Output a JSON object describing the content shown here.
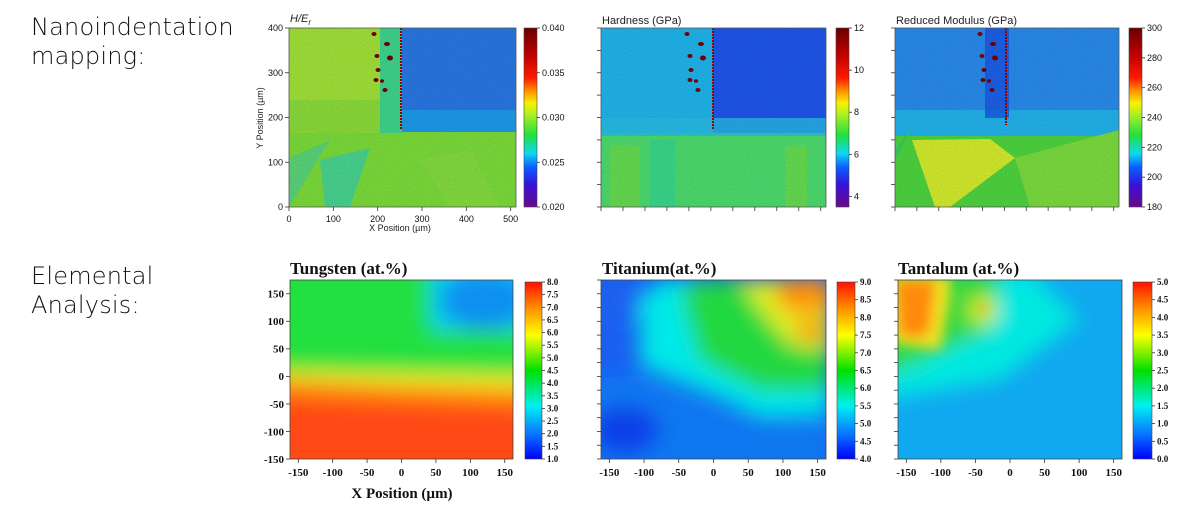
{
  "labels": {
    "nano_line1": "Nanoindentation",
    "nano_line2": "mapping:",
    "elem_line1": "Elemental",
    "elem_line2": "Analysis:"
  },
  "chart_data": [
    {
      "id": "her",
      "type": "heatmap",
      "title": "H/E_r",
      "title_main": "H/E",
      "title_sub": "r",
      "xlabel": "X Position (µm)",
      "ylabel": "Y Position (µm)",
      "xlim": [
        0,
        512
      ],
      "ylim": [
        0,
        400
      ],
      "xticks": [
        0,
        100,
        200,
        300,
        400,
        500
      ],
      "yticks": [
        0,
        100,
        200,
        300,
        400
      ],
      "colorbar": {
        "min": 0.02,
        "max": 0.04,
        "ticks": [
          "0.020",
          "0.025",
          "0.030",
          "0.035",
          "0.040"
        ],
        "colormap": "rainbow-purple-to-maroon"
      },
      "regions": [
        {
          "name": "upper-left grain",
          "level": 0.028
        },
        {
          "name": "upper-right grain",
          "level": 0.023
        },
        {
          "name": "lower grains",
          "level": 0.0265
        }
      ],
      "notes": "Interface near x≈255 µm with high-value indents; horizontal grain boundary near y≈160 µm"
    },
    {
      "id": "hardness",
      "type": "heatmap",
      "title": "Hardness (GPa)",
      "xlim": [
        0,
        512
      ],
      "ylim": [
        0,
        400
      ],
      "colorbar": {
        "min": 3.5,
        "max": 12,
        "ticks": [
          "4",
          "6",
          "8",
          "10",
          "12"
        ],
        "colormap": "rainbow-purple-to-maroon"
      },
      "regions": [
        {
          "name": "upper-left grain",
          "level": 5.8
        },
        {
          "name": "upper-right grain",
          "level": 4.9
        },
        {
          "name": "lower grains",
          "level": 6.2
        }
      ]
    },
    {
      "id": "modulus",
      "type": "heatmap",
      "title": "Reduced Modulus (GPa)",
      "xlim": [
        0,
        512
      ],
      "ylim": [
        0,
        400
      ],
      "colorbar": {
        "min": 180,
        "max": 300,
        "ticks": [
          "180",
          "200",
          "220",
          "240",
          "260",
          "280",
          "300"
        ],
        "colormap": "rainbow-purple-to-maroon"
      },
      "regions": [
        {
          "name": "upper grains",
          "level": 207
        },
        {
          "name": "lower-left triangular grain",
          "level": 236
        },
        {
          "name": "lower grains",
          "level": 226
        }
      ]
    },
    {
      "id": "tungsten",
      "type": "heatmap",
      "title": "Tungsten (at.%)",
      "xlabel": "X Position (µm)",
      "xlim": [
        -162,
        162
      ],
      "ylim": [
        -150,
        175
      ],
      "xticks": [
        -150,
        -100,
        -50,
        0,
        50,
        100,
        150
      ],
      "yticks": [
        -150,
        -100,
        -50,
        0,
        50,
        100,
        150
      ],
      "colorbar": {
        "min": 1.0,
        "max": 8.0,
        "ticks": [
          "1.0",
          "1.5",
          "2.0",
          "2.5",
          "3.0",
          "3.5",
          "4.0",
          "4.5",
          "5.0",
          "5.5",
          "6.0",
          "6.5",
          "7.0",
          "7.5",
          "8.0"
        ],
        "colormap": "jet"
      },
      "field": {
        "top-left": 4.3,
        "top-right": 2.0,
        "middle-left": 4.6,
        "middle-right": 4.0,
        "zero-line": 6.0,
        "bottom": 7.5
      }
    },
    {
      "id": "titanium",
      "type": "heatmap",
      "title": "Titanium(at.%)",
      "xlim": [
        -162,
        162
      ],
      "ylim": [
        -150,
        175
      ],
      "xticks": [
        -150,
        -100,
        -50,
        0,
        50,
        100,
        150
      ],
      "colorbar": {
        "min": 4.0,
        "max": 9.0,
        "ticks": [
          "4.0",
          "4.5",
          "5.0",
          "5.5",
          "6.0",
          "6.5",
          "7.0",
          "7.5",
          "8.0",
          "8.5",
          "9.0"
        ],
        "colormap": "jet"
      },
      "field": {
        "top-left": 5.0,
        "top-right": 8.3,
        "center": 6.5,
        "bottom-left": 4.4,
        "bottom-right": 5.0
      }
    },
    {
      "id": "tantalum",
      "type": "heatmap",
      "title": "Tantalum (at.%)",
      "xlim": [
        -162,
        162
      ],
      "ylim": [
        -150,
        175
      ],
      "xticks": [
        -150,
        -100,
        -50,
        0,
        50,
        100,
        150
      ],
      "colorbar": {
        "min": 0.0,
        "max": 5.0,
        "ticks": [
          "0.0",
          "0.5",
          "1.0",
          "1.5",
          "2.0",
          "2.5",
          "3.0",
          "3.5",
          "4.0",
          "4.5",
          "5.0"
        ],
        "colormap": "jet"
      },
      "field": {
        "top-left": 4.2,
        "top-center": 2.8,
        "top-right": 1.3,
        "center": 1.6,
        "bottom": 0.9
      }
    }
  ]
}
